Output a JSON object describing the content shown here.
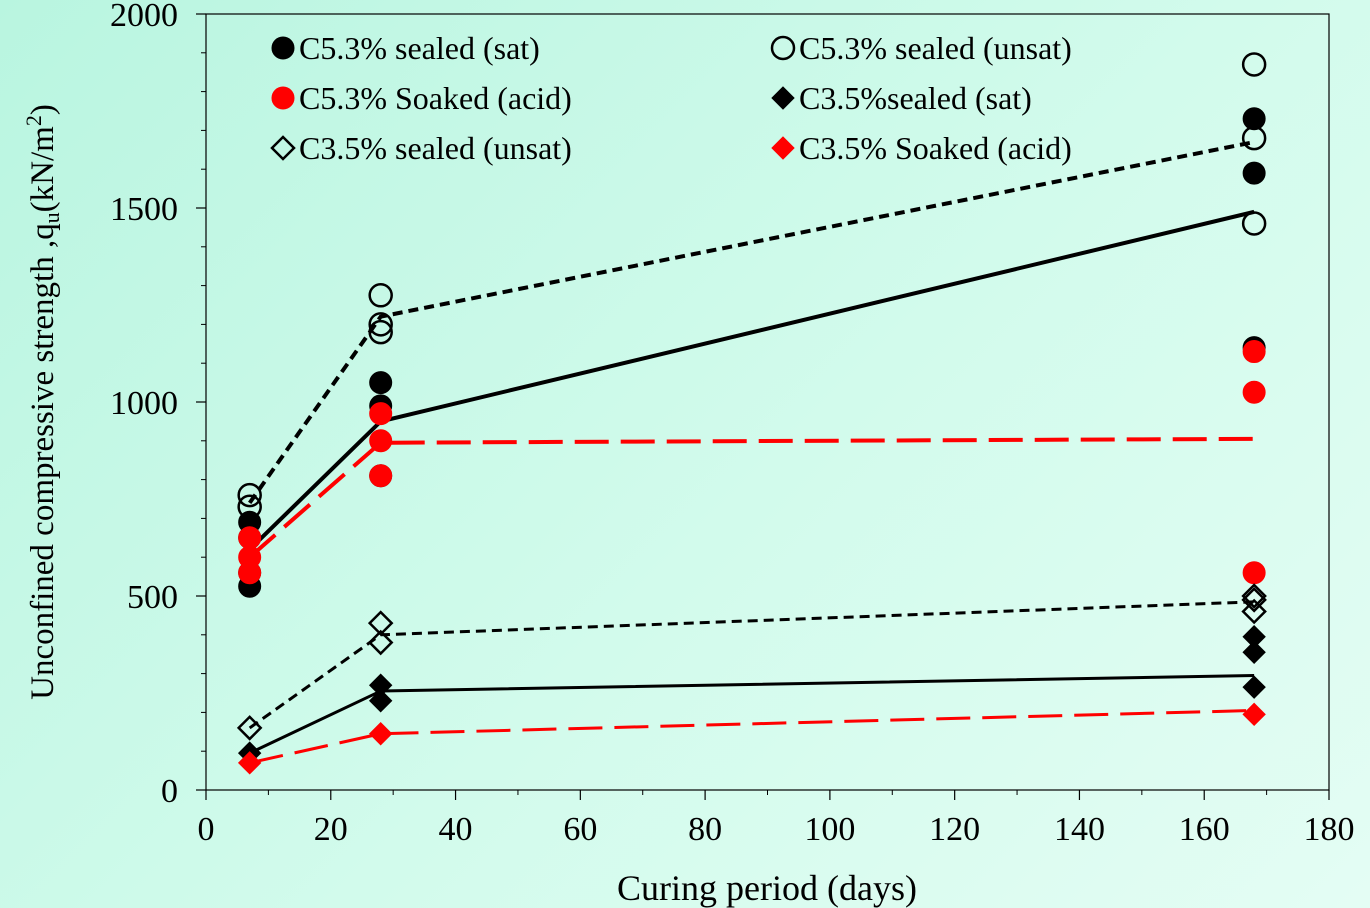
{
  "chart_data": {
    "type": "scatter",
    "xlabel": "Curing period (days)",
    "ylabel": "Unconfined compressive strength ,q",
    "ylabel_sub": "u",
    "ylabel_unit": "(kN/m",
    "ylabel_sup": "2",
    "ylabel_close": ")",
    "xlim": [
      0,
      180
    ],
    "ylim": [
      0,
      2000
    ],
    "xticks": [
      0,
      20,
      40,
      60,
      80,
      100,
      120,
      140,
      160,
      180
    ],
    "yticks": [
      0,
      500,
      1000,
      1500,
      2000
    ],
    "grid": false,
    "legend_position": "top",
    "series": [
      {
        "name": "C5.3% sealed (sat)",
        "marker": "circle",
        "filled": true,
        "color": "#000000",
        "points": [
          [
            7,
            525
          ],
          [
            7,
            560
          ],
          [
            7,
            650
          ],
          [
            7,
            690
          ],
          [
            28,
            810
          ],
          [
            28,
            990
          ],
          [
            28,
            1050
          ],
          [
            168,
            1140
          ],
          [
            168,
            1590
          ],
          [
            168,
            1730
          ]
        ]
      },
      {
        "name": "C5.3% sealed (unsat)",
        "marker": "circle",
        "filled": false,
        "color": "#000000",
        "points": [
          [
            7,
            730
          ],
          [
            7,
            760
          ],
          [
            28,
            1180
          ],
          [
            28,
            1200
          ],
          [
            28,
            1275
          ],
          [
            168,
            1460
          ],
          [
            168,
            1680
          ],
          [
            168,
            1870
          ]
        ]
      },
      {
        "name": "C5.3% Soaked (acid)",
        "marker": "circle",
        "filled": true,
        "color": "#ff0000",
        "points": [
          [
            7,
            560
          ],
          [
            7,
            600
          ],
          [
            7,
            650
          ],
          [
            28,
            810
          ],
          [
            28,
            900
          ],
          [
            28,
            970
          ],
          [
            168,
            560
          ],
          [
            168,
            1025
          ],
          [
            168,
            1130
          ]
        ]
      },
      {
        "name": "C3.5%sealed (sat)",
        "marker": "diamond",
        "filled": true,
        "color": "#000000",
        "points": [
          [
            7,
            95
          ],
          [
            28,
            230
          ],
          [
            28,
            270
          ],
          [
            168,
            265
          ],
          [
            168,
            355
          ],
          [
            168,
            395
          ]
        ]
      },
      {
        "name": "C3.5% sealed (unsat)",
        "marker": "diamond",
        "filled": false,
        "color": "#000000",
        "points": [
          [
            7,
            160
          ],
          [
            28,
            380
          ],
          [
            28,
            430
          ],
          [
            168,
            460
          ],
          [
            168,
            490
          ],
          [
            168,
            500
          ]
        ]
      },
      {
        "name": "C3.5% Soaked (acid)",
        "marker": "diamond",
        "filled": true,
        "color": "#ff0000",
        "points": [
          [
            7,
            70
          ],
          [
            28,
            145
          ],
          [
            168,
            195
          ]
        ]
      }
    ],
    "trend_lines": [
      {
        "style": "solid",
        "color": "#000000",
        "width": 4,
        "points": [
          [
            7,
            620
          ],
          [
            28,
            950
          ],
          [
            168,
            1490
          ]
        ]
      },
      {
        "style": "short-dash",
        "color": "#000000",
        "width": 4,
        "points": [
          [
            7,
            740
          ],
          [
            28,
            1220
          ],
          [
            168,
            1670
          ]
        ]
      },
      {
        "style": "long-dash",
        "color": "#ff0000",
        "width": 4,
        "points": [
          [
            7,
            600
          ],
          [
            28,
            895
          ],
          [
            168,
            905
          ]
        ]
      },
      {
        "style": "solid",
        "color": "#000000",
        "width": 3,
        "points": [
          [
            7,
            95
          ],
          [
            28,
            255
          ],
          [
            168,
            295
          ]
        ]
      },
      {
        "style": "short-dash",
        "color": "#000000",
        "width": 3,
        "points": [
          [
            7,
            160
          ],
          [
            28,
            400
          ],
          [
            168,
            485
          ]
        ]
      },
      {
        "style": "long-dash",
        "color": "#ff0000",
        "width": 3,
        "points": [
          [
            7,
            70
          ],
          [
            28,
            145
          ],
          [
            168,
            205
          ]
        ]
      }
    ]
  }
}
